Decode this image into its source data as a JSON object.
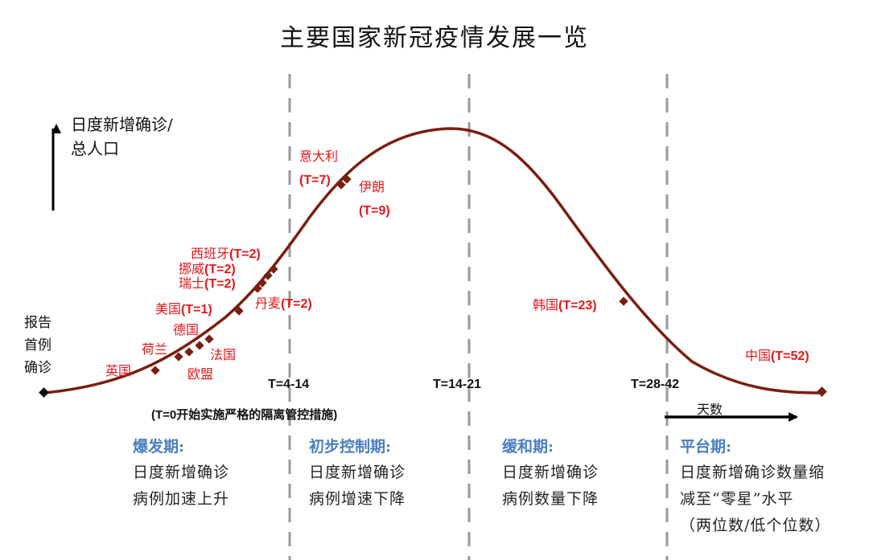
{
  "title": "主要国家新冠疫情发展一览",
  "y_axis_label": [
    "日度新增确诊/",
    "总人口"
  ],
  "origin_label": [
    "报告",
    "首例",
    "确诊"
  ],
  "x_axis_label": "天数",
  "x_note": "(T=0开始实施严格的隔离管控措施)",
  "boundaries": [
    {
      "label": "T=4-14"
    },
    {
      "label": "T=14-21"
    },
    {
      "label": "T=28-42"
    }
  ],
  "points": [
    {
      "name": "英国",
      "t": ""
    },
    {
      "name": "荷兰",
      "t": ""
    },
    {
      "name": "德国",
      "t": ""
    },
    {
      "name": "法国",
      "t": ""
    },
    {
      "name": "欧盟",
      "t": ""
    },
    {
      "name": "美国",
      "t": "(T=1)"
    },
    {
      "name": "丹麦",
      "t": "(T=2)"
    },
    {
      "name": "瑞士",
      "t": "(T=2)"
    },
    {
      "name": "挪威",
      "t": "(T=2)"
    },
    {
      "name": "西班牙",
      "t": "(T=2)"
    },
    {
      "name": "意大利",
      "t": "(T=7)"
    },
    {
      "name": "伊朗",
      "t": "(T=9)"
    },
    {
      "name": "韩国",
      "t": "(T=23)"
    },
    {
      "name": "中国",
      "t": "(T=52)"
    }
  ],
  "phases": [
    {
      "title": "爆发期:",
      "lines": [
        "日度新增确诊",
        "病例加速上升"
      ]
    },
    {
      "title": "初步控制期:",
      "lines": [
        "日度新增确诊",
        "病例增速下降"
      ]
    },
    {
      "title": "缓和期:",
      "lines": [
        "日度新增确诊",
        "病例数量下降"
      ]
    },
    {
      "title": "平台期:",
      "lines": [
        "日度新增确诊数量缩",
        "减至“零星”水平",
        "（两位数/低个位数）"
      ]
    }
  ],
  "colors": {
    "curve": "#7a1f10",
    "label": "#e8161a",
    "phase_title": "#4a7fc1",
    "divider": "#999999"
  }
}
